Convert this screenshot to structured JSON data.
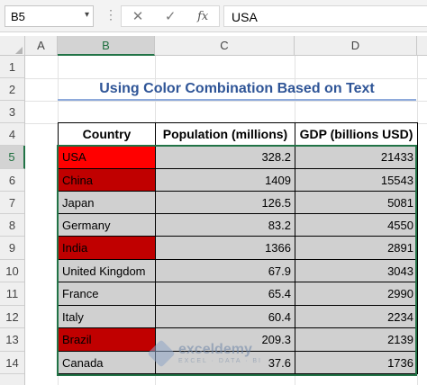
{
  "formula_bar": {
    "name_box": "B5",
    "cancel_icon": "✕",
    "enter_icon": "✓",
    "fx_label": "fx",
    "formula_value": "USA"
  },
  "columns": [
    "A",
    "B",
    "C",
    "D"
  ],
  "selected_column": "B",
  "rows": [
    "1",
    "2",
    "3",
    "4",
    "5",
    "6",
    "7",
    "8",
    "9",
    "10",
    "11",
    "12",
    "13",
    "14"
  ],
  "selected_row": "5",
  "title": "Using Color Combination Based on Text",
  "table": {
    "headers": [
      "Country",
      "Population (millions)",
      "GDP (billions USD)"
    ],
    "rows": [
      {
        "country": "USA",
        "population": "328.2",
        "gdp": "21433",
        "highlight": "#ff0000"
      },
      {
        "country": "China",
        "population": "1409",
        "gdp": "15543",
        "highlight": "#c00000"
      },
      {
        "country": "Japan",
        "population": "126.5",
        "gdp": "5081",
        "highlight": null
      },
      {
        "country": "Germany",
        "population": "83.2",
        "gdp": "4550",
        "highlight": null
      },
      {
        "country": "India",
        "population": "1366",
        "gdp": "2891",
        "highlight": "#c00000"
      },
      {
        "country": "United Kingdom",
        "population": "67.9",
        "gdp": "3043",
        "highlight": null
      },
      {
        "country": "France",
        "population": "65.4",
        "gdp": "2990",
        "highlight": null
      },
      {
        "country": "Italy",
        "population": "60.4",
        "gdp": "2234",
        "highlight": null
      },
      {
        "country": "Brazil",
        "population": "209.3",
        "gdp": "2139",
        "highlight": "#c00000"
      },
      {
        "country": "Canada",
        "population": "37.6",
        "gdp": "1736",
        "highlight": null
      }
    ]
  },
  "colors": {
    "cell_fill": "#d0d0d0",
    "title_color": "#2f5597",
    "selection": "#217346"
  },
  "watermark": {
    "name": "exceldemy",
    "tagline": "EXCEL · DATA · BI"
  }
}
